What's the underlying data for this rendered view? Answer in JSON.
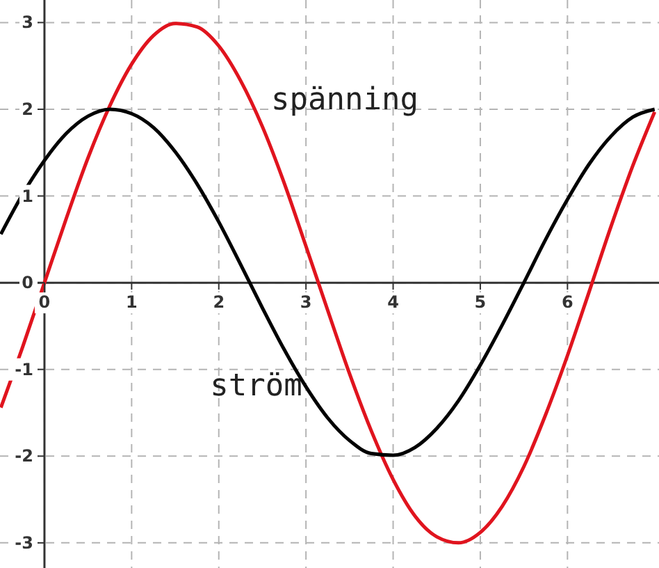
{
  "chart_data": {
    "type": "line",
    "x": [
      -0.5,
      -0.25,
      0,
      0.25,
      0.5,
      0.75,
      1,
      1.25,
      1.5,
      1.75,
      2,
      2.25,
      2.5,
      2.75,
      3,
      3.25,
      3.5,
      3.75,
      4,
      4.25,
      4.5,
      4.75,
      5,
      5.25,
      5.5,
      5.75,
      6,
      6.25,
      6.5,
      6.75,
      7
    ],
    "series": [
      {
        "name": "spänning",
        "color": "#e0141e",
        "values": [
          -1.44,
          -0.74,
          0,
          0.74,
          1.44,
          2.04,
          2.52,
          2.85,
          2.99,
          2.95,
          2.73,
          2.33,
          1.8,
          1.15,
          0.42,
          -0.32,
          -1.05,
          -1.71,
          -2.27,
          -2.69,
          -2.93,
          -3,
          -2.88,
          -2.58,
          -2.12,
          -1.52,
          -0.84,
          -0.1,
          0.65,
          1.35,
          1.97
        ]
      },
      {
        "name": "ström",
        "color": "#000000",
        "values": [
          0.56,
          1.02,
          1.41,
          1.72,
          1.92,
          2,
          1.95,
          1.79,
          1.51,
          1.14,
          0.7,
          0.21,
          -0.29,
          -0.77,
          -1.2,
          -1.56,
          -1.82,
          -1.97,
          -1.99,
          -1.9,
          -1.68,
          -1.36,
          -0.95,
          -0.49,
          0,
          0.5,
          0.96,
          1.37,
          1.69,
          1.91,
          2
        ]
      }
    ],
    "xlim": [
      -0.51,
      7.05
    ],
    "ylim": [
      -3.29,
      3.26
    ],
    "xticks": [
      0,
      1,
      2,
      3,
      4,
      5,
      6
    ],
    "yticks": [
      -3,
      -2,
      -1,
      0,
      1,
      2,
      3
    ],
    "grid": true,
    "marker": "none",
    "line_style": "solid"
  }
}
